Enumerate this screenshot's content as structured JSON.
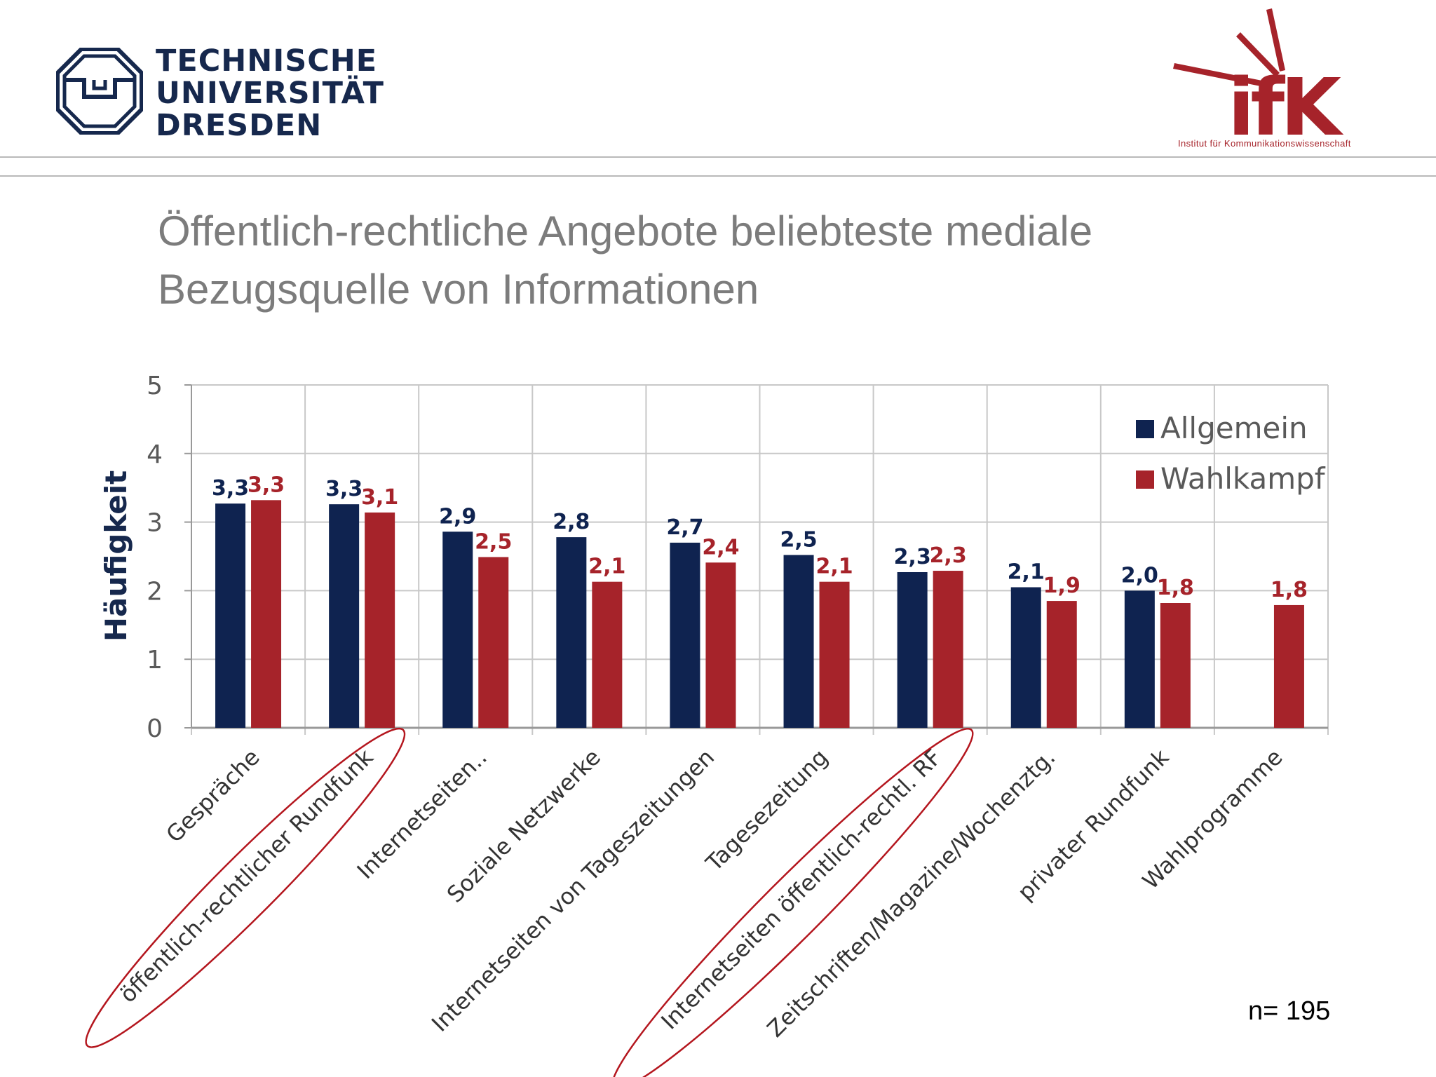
{
  "header": {
    "university_lines": [
      "TECHNISCHE",
      "UNIVERSITÄT",
      "DRESDEN"
    ],
    "institute_logo": "ifK",
    "institute_name": "Institut für Kommunikationswissenschaft"
  },
  "title_lines": [
    "Öffentlich-rechtliche Angebote beliebteste mediale",
    "Bezugsquelle von Informationen"
  ],
  "sample_note": "n= 195",
  "colors": {
    "allgemein": "#0f2350",
    "wahlkampf": "#a6232a",
    "grid": "#c8c8c8",
    "title": "#7c7c7c",
    "highlight": "#b4161e"
  },
  "chart_data": {
    "type": "bar",
    "ylabel": "Häufigkeit",
    "ylim": [
      0,
      5
    ],
    "yticks": [
      0,
      1,
      2,
      3,
      4,
      5
    ],
    "grid": true,
    "legend_position": "top-right",
    "categories": [
      "Gespräche",
      "öffentlich-rechtlicher Rundfunk",
      "Internetseiten..",
      "Soziale Netzwerke",
      "Internetseiten von Tageszeitungen",
      "Tagesezeitung",
      "Internetseiten öffentlich-rechtl. RF",
      "Zeitschriften/Magazine/Wochenztg.",
      "privater Rundfunk",
      "Wahlprogramme"
    ],
    "highlighted_categories": [
      "öffentlich-rechtlicher Rundfunk",
      "Internetseiten öffentlich-rechtl. RF"
    ],
    "series": [
      {
        "name": "Allgemein",
        "values": [
          3.27,
          3.26,
          2.86,
          2.78,
          2.7,
          2.52,
          2.27,
          2.05,
          2.0,
          null
        ],
        "labels": [
          "3,3",
          "3,3",
          "2,9",
          "2,8",
          "2,7",
          "2,5",
          "2,3",
          "2,1",
          "2,0",
          ""
        ]
      },
      {
        "name": "Wahlkampf",
        "values": [
          3.32,
          3.14,
          2.49,
          2.13,
          2.41,
          2.13,
          2.29,
          1.85,
          1.82,
          1.79
        ],
        "labels": [
          "3,3",
          "3,1",
          "2,5",
          "2,1",
          "2,4",
          "2,1",
          "2,3",
          "1,9",
          "1,8",
          "1,8"
        ]
      }
    ]
  }
}
